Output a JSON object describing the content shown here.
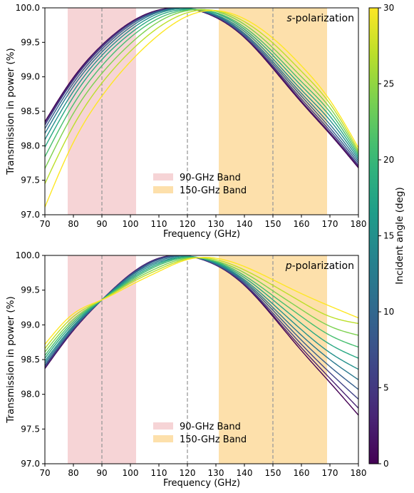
{
  "figure": {
    "colorbar_label": "Incident angle (deg)",
    "colorbar_ticks": [
      0,
      5,
      10,
      15,
      20,
      25,
      30
    ],
    "colorbar_range": [
      0,
      30
    ],
    "colormap": "viridis"
  },
  "chart_data": [
    {
      "type": "line",
      "title": "",
      "annotation": {
        "italic": "s",
        "rest": "-polarization"
      },
      "xlabel": "Frequency (GHz)",
      "ylabel": "Transmission in power (%)",
      "xlim": [
        70,
        180
      ],
      "ylim": [
        97.0,
        100.0
      ],
      "xticks": [
        70,
        80,
        90,
        100,
        110,
        120,
        130,
        140,
        150,
        160,
        170,
        180
      ],
      "yticks": [
        "97.0",
        "97.5",
        "98.0",
        "98.5",
        "99.0",
        "99.5",
        "100.0"
      ],
      "bands": [
        {
          "name": "90-GHz Band",
          "range": [
            78,
            102
          ],
          "color": "#f6d4d6"
        },
        {
          "name": "150-GHz Band",
          "range": [
            131,
            169
          ],
          "color": "#fde0ab"
        }
      ],
      "vlines": [
        90,
        120,
        150
      ],
      "legend": {
        "placement": "lower center",
        "entries": [
          "90-GHz Band",
          "150-GHz Band"
        ]
      },
      "series_note": "one curve per incident angle, colored by angle",
      "angles": [
        0,
        3,
        6,
        9,
        12,
        15,
        18,
        21,
        24,
        27,
        30
      ],
      "x": [
        70,
        80,
        90,
        100,
        110,
        120,
        130,
        140,
        150,
        160,
        170,
        180
      ],
      "series": [
        {
          "angle": 0,
          "values": [
            98.35,
            98.99,
            99.46,
            99.79,
            99.97,
            99.99,
            99.86,
            99.57,
            99.12,
            98.63,
            98.17,
            97.68
          ]
        },
        {
          "angle": 3,
          "values": [
            98.33,
            98.97,
            99.45,
            99.78,
            99.96,
            99.99,
            99.87,
            99.58,
            99.14,
            98.65,
            98.19,
            97.7
          ]
        },
        {
          "angle": 6,
          "values": [
            98.3,
            98.95,
            99.43,
            99.77,
            99.96,
            99.99,
            99.87,
            99.59,
            99.16,
            98.68,
            98.22,
            97.72
          ]
        },
        {
          "angle": 9,
          "values": [
            98.25,
            98.91,
            99.4,
            99.75,
            99.95,
            99.99,
            99.88,
            99.61,
            99.19,
            98.72,
            98.26,
            97.75
          ]
        },
        {
          "angle": 12,
          "values": [
            98.18,
            98.86,
            99.36,
            99.72,
            99.94,
            99.99,
            99.89,
            99.63,
            99.22,
            98.76,
            98.31,
            97.78
          ]
        },
        {
          "angle": 15,
          "values": [
            98.09,
            98.79,
            99.31,
            99.68,
            99.92,
            99.99,
            99.9,
            99.66,
            99.26,
            98.81,
            98.37,
            97.81
          ]
        },
        {
          "angle": 18,
          "values": [
            97.98,
            98.71,
            99.25,
            99.63,
            99.89,
            99.98,
            99.92,
            99.69,
            99.31,
            98.87,
            98.43,
            97.84
          ]
        },
        {
          "angle": 21,
          "values": [
            97.84,
            98.6,
            99.16,
            99.57,
            99.85,
            99.97,
            99.93,
            99.72,
            99.36,
            98.93,
            98.49,
            97.87
          ]
        },
        {
          "angle": 24,
          "values": [
            97.67,
            98.47,
            99.05,
            99.48,
            99.8,
            99.96,
            99.95,
            99.76,
            99.42,
            99.0,
            98.55,
            97.9
          ]
        },
        {
          "angle": 27,
          "values": [
            97.45,
            98.29,
            98.91,
            99.37,
            99.72,
            99.93,
            99.96,
            99.8,
            99.49,
            99.08,
            98.61,
            97.93
          ]
        },
        {
          "angle": 30,
          "values": [
            97.11,
            98.05,
            98.72,
            99.22,
            99.61,
            99.88,
            99.96,
            99.84,
            99.56,
            99.16,
            98.66,
            97.97
          ]
        }
      ]
    },
    {
      "type": "line",
      "title": "",
      "annotation": {
        "italic": "p",
        "rest": "-polarization"
      },
      "xlabel": "Frequency (GHz)",
      "ylabel": "Transmission in power (%)",
      "xlim": [
        70,
        180
      ],
      "ylim": [
        97.0,
        100.0
      ],
      "xticks": [
        70,
        80,
        90,
        100,
        110,
        120,
        130,
        140,
        150,
        160,
        170,
        180
      ],
      "yticks": [
        "97.0",
        "97.5",
        "98.0",
        "98.5",
        "99.0",
        "99.5",
        "100.0"
      ],
      "bands": [
        {
          "name": "90-GHz Band",
          "range": [
            78,
            102
          ],
          "color": "#f6d4d6"
        },
        {
          "name": "150-GHz Band",
          "range": [
            131,
            169
          ],
          "color": "#fde0ab"
        }
      ],
      "vlines": [
        90,
        120,
        150
      ],
      "legend": {
        "placement": "lower center",
        "entries": [
          "90-GHz Band",
          "150-GHz Band"
        ]
      },
      "series_note": "one curve per incident angle, colored by angle",
      "angles": [
        0,
        3,
        6,
        9,
        12,
        15,
        18,
        21,
        24,
        27,
        30
      ],
      "x": [
        70,
        80,
        90,
        100,
        110,
        120,
        130,
        140,
        150,
        160,
        170,
        180
      ],
      "series": [
        {
          "angle": 0,
          "values": [
            98.37,
            98.92,
            99.36,
            99.73,
            99.96,
            99.99,
            99.86,
            99.57,
            99.12,
            98.63,
            98.17,
            97.7
          ]
        },
        {
          "angle": 3,
          "values": [
            98.38,
            98.93,
            99.36,
            99.73,
            99.96,
            99.99,
            99.86,
            99.58,
            99.14,
            98.67,
            98.23,
            97.8
          ]
        },
        {
          "angle": 6,
          "values": [
            98.4,
            98.94,
            99.36,
            99.72,
            99.95,
            99.99,
            99.87,
            99.59,
            99.17,
            98.72,
            98.31,
            97.93
          ]
        },
        {
          "angle": 9,
          "values": [
            98.42,
            98.95,
            99.36,
            99.71,
            99.94,
            99.99,
            99.87,
            99.61,
            99.21,
            98.78,
            98.4,
            98.07
          ]
        },
        {
          "angle": 12,
          "values": [
            98.45,
            98.97,
            99.36,
            99.7,
            99.92,
            99.99,
            99.88,
            99.63,
            99.25,
            98.85,
            98.5,
            98.21
          ]
        },
        {
          "angle": 15,
          "values": [
            98.48,
            98.99,
            99.36,
            99.68,
            99.9,
            99.98,
            99.89,
            99.65,
            99.3,
            98.93,
            98.6,
            98.36
          ]
        },
        {
          "angle": 18,
          "values": [
            98.52,
            99.02,
            99.36,
            99.66,
            99.88,
            99.98,
            99.9,
            99.68,
            99.36,
            99.02,
            98.72,
            98.52
          ]
        },
        {
          "angle": 21,
          "values": [
            98.56,
            99.05,
            99.36,
            99.64,
            99.86,
            99.97,
            99.91,
            99.71,
            99.42,
            99.12,
            98.85,
            98.68
          ]
        },
        {
          "angle": 24,
          "values": [
            98.61,
            99.08,
            99.36,
            99.62,
            99.83,
            99.96,
            99.92,
            99.75,
            99.49,
            99.22,
            98.98,
            98.85
          ]
        },
        {
          "angle": 27,
          "values": [
            98.66,
            99.12,
            99.36,
            99.6,
            99.8,
            99.95,
            99.94,
            99.79,
            99.57,
            99.33,
            99.12,
            99.02
          ]
        },
        {
          "angle": 30,
          "values": [
            98.72,
            99.16,
            99.36,
            99.57,
            99.77,
            99.94,
            99.96,
            99.84,
            99.65,
            99.45,
            99.27,
            99.1
          ]
        }
      ]
    }
  ]
}
